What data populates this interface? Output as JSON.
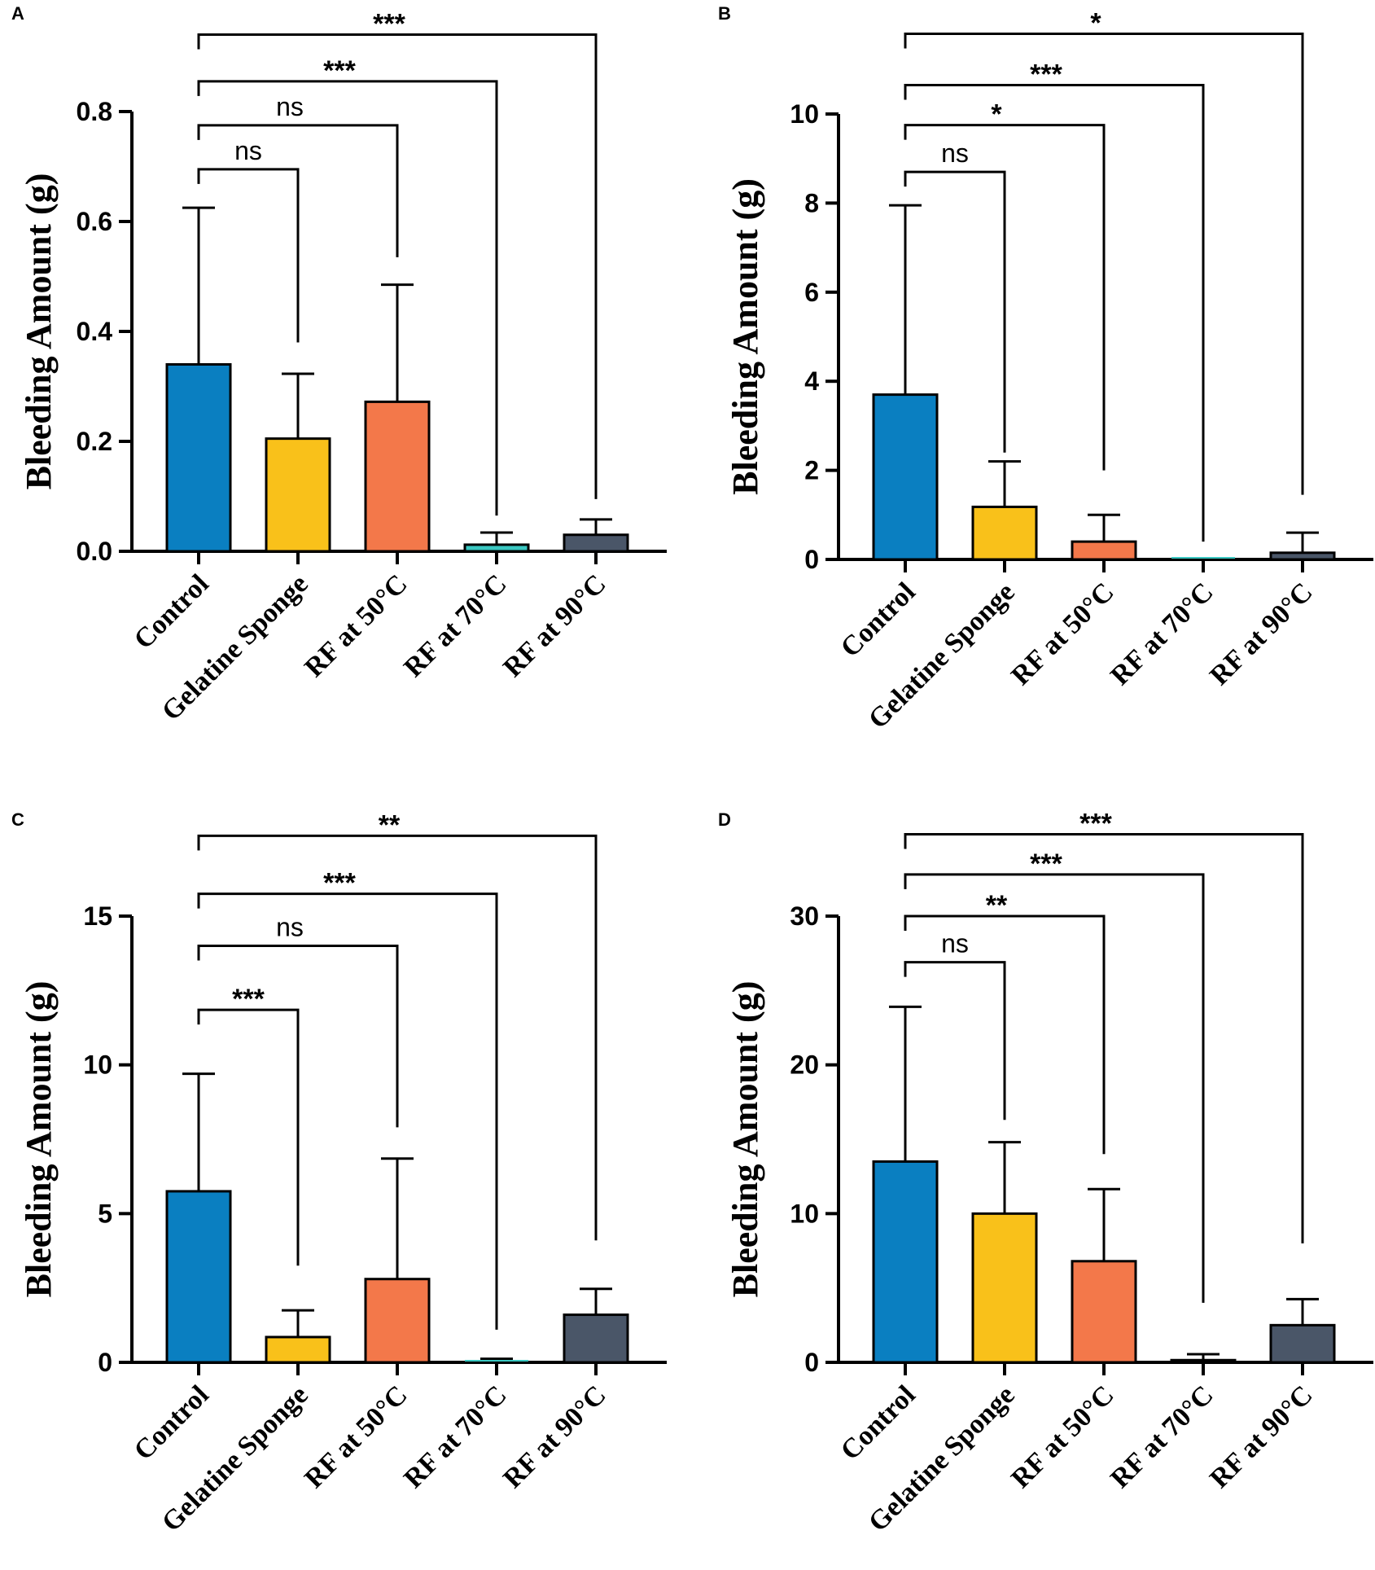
{
  "chart_data": [
    {
      "panel": "A",
      "type": "bar",
      "ylabel": "Bleeding Amount (g)",
      "ylim": [
        0,
        0.8
      ],
      "yticks": [
        "0.0",
        "0.2",
        "0.4",
        "0.6",
        "0.8"
      ],
      "ytick_values": [
        0,
        0.2,
        0.4,
        0.6,
        0.8
      ],
      "categories": [
        "Control",
        "Gelatine Sponge",
        "RF at 50°C",
        "RF at 70°C",
        "RF at 90°C"
      ],
      "values": [
        0.34,
        0.205,
        0.272,
        0.012,
        0.03
      ],
      "errors": [
        0.285,
        0.118,
        0.213,
        0.022,
        0.028
      ],
      "significance": [
        {
          "target": 1,
          "label": "ns",
          "top": 0.695,
          "drop": 0.38
        },
        {
          "target": 2,
          "label": "ns",
          "top": 0.775,
          "drop": 0.535
        },
        {
          "target": 3,
          "label": "***",
          "top": 0.855,
          "drop": 0.065
        },
        {
          "target": 4,
          "label": "***",
          "top": 0.94,
          "drop": 0.095
        }
      ]
    },
    {
      "panel": "B",
      "type": "bar",
      "ylabel": "Bleeding Amount (g)",
      "ylim": [
        0,
        10
      ],
      "yticks": [
        "0",
        "2",
        "4",
        "6",
        "8",
        "10"
      ],
      "ytick_values": [
        0,
        2,
        4,
        6,
        8,
        10
      ],
      "categories": [
        "Control",
        "Gelatine Sponge",
        "RF at 50°C",
        "RF at 70°C",
        "RF at 90°C"
      ],
      "values": [
        3.7,
        1.18,
        0.4,
        0,
        0.15
      ],
      "errors": [
        4.25,
        1.02,
        0.6,
        0,
        0.45
      ],
      "significance": [
        {
          "target": 1,
          "label": "ns",
          "top": 8.7,
          "drop": 2.4
        },
        {
          "target": 2,
          "label": "*",
          "top": 9.75,
          "drop": 2.0
        },
        {
          "target": 3,
          "label": "***",
          "top": 10.65,
          "drop": 0.4
        },
        {
          "target": 4,
          "label": "*",
          "top": 11.8,
          "drop": 1.45
        }
      ]
    },
    {
      "panel": "C",
      "type": "bar",
      "ylabel": "Bleeding Amount (g)",
      "ylim": [
        0,
        15
      ],
      "yticks": [
        "0",
        "5",
        "10",
        "15"
      ],
      "ytick_values": [
        0,
        5,
        10,
        15
      ],
      "categories": [
        "Control",
        "Gelatine Sponge",
        "RF at 50°C",
        "RF at 70°C",
        "RF at 90°C"
      ],
      "values": [
        5.75,
        0.85,
        2.8,
        0,
        1.6
      ],
      "errors": [
        3.95,
        0.9,
        4.05,
        0.12,
        0.87
      ],
      "significance": [
        {
          "target": 1,
          "label": "***",
          "top": 11.85,
          "drop": 3.25
        },
        {
          "target": 2,
          "label": "ns",
          "top": 14.0,
          "drop": 7.9
        },
        {
          "target": 3,
          "label": "***",
          "top": 15.75,
          "drop": 1.1
        },
        {
          "target": 4,
          "label": "**",
          "top": 17.7,
          "drop": 4.1
        }
      ]
    },
    {
      "panel": "D",
      "type": "bar",
      "ylabel": "Bleeding Amount (g)",
      "ylim": [
        0,
        30
      ],
      "yticks": [
        "0",
        "10",
        "20",
        "30"
      ],
      "ytick_values": [
        0,
        10,
        20,
        30
      ],
      "categories": [
        "Control",
        "Gelatine Sponge",
        "RF at 50°C",
        "RF at 70°C",
        "RF at 90°C"
      ],
      "values": [
        13.5,
        10.0,
        6.8,
        0.15,
        2.5
      ],
      "errors": [
        10.4,
        4.8,
        4.85,
        0.4,
        1.75
      ],
      "significance": [
        {
          "target": 1,
          "label": "ns",
          "top": 26.9,
          "drop": 16.3
        },
        {
          "target": 2,
          "label": "**",
          "top": 30.0,
          "drop": 14.0
        },
        {
          "target": 3,
          "label": "***",
          "top": 32.8,
          "drop": 4.0
        },
        {
          "target": 4,
          "label": "***",
          "top": 35.5,
          "drop": 8.0
        }
      ]
    }
  ],
  "colors": {
    "bars": [
      "#0a7fc1",
      "#f9c11a",
      "#f3784a",
      "#3ac7c1",
      "#4a5668"
    ],
    "stroke": "#000000"
  }
}
